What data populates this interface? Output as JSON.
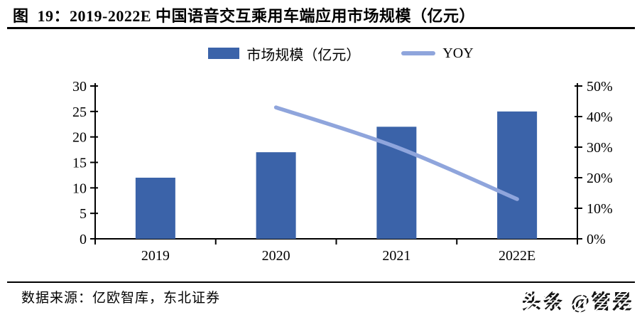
{
  "figure": {
    "title": "图  19：2019-2022E 中国语音交互乘用车端应用市场规模（亿元）",
    "source": "数据来源：亿欧智库，东北证券",
    "watermark": "头条 @管是"
  },
  "legend": [
    {
      "label": "市场规模（亿元）",
      "swatch": "bar",
      "color": "#3B63A9"
    },
    {
      "label": "YOY",
      "swatch": "line",
      "color": "#8FA5DC"
    }
  ],
  "chart_data": {
    "type": "bar",
    "subtype": "bar-line-combo",
    "title": "2019-2022E 中国语音交互乘用车端应用市场规模（亿元）",
    "categories": [
      "2019",
      "2020",
      "2021",
      "2022E"
    ],
    "series": [
      {
        "name": "市场规模（亿元）",
        "type": "bar",
        "axis": "left",
        "color": "#3B63A9",
        "values": [
          12,
          17,
          22,
          25
        ]
      },
      {
        "name": "YOY",
        "type": "line",
        "axis": "right",
        "color": "#8FA5DC",
        "unit": "%",
        "values": [
          null,
          43,
          30,
          13
        ]
      }
    ],
    "left_axis": {
      "min": 0,
      "max": 30,
      "step": 5,
      "ticks": [
        "0",
        "5",
        "10",
        "15",
        "20",
        "25",
        "30"
      ]
    },
    "right_axis": {
      "min": 0,
      "max": 50,
      "step": 10,
      "unit": "%",
      "ticks": [
        "0%",
        "10%",
        "20%",
        "30%",
        "40%",
        "50%"
      ]
    },
    "grid": false,
    "legend_position": "top",
    "smooth_line": true
  }
}
